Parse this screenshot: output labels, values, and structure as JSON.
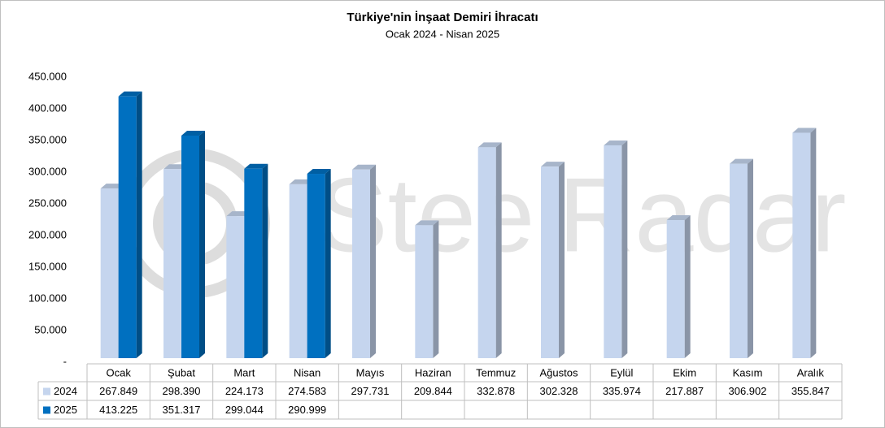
{
  "chart_data": {
    "type": "bar3d",
    "title": "Türkiye'nin İnşaat Demiri İhracatı",
    "subtitle": "Ocak 2024 - Nisan 2025",
    "watermark": "SteelRadar",
    "categories": [
      "Ocak",
      "Şubat",
      "Mart",
      "Nisan",
      "Mayıs",
      "Haziran",
      "Temmuz",
      "Ağustos",
      "Eylül",
      "Ekim",
      "Kasım",
      "Aralık"
    ],
    "series": [
      {
        "name": "2024",
        "color": "#c5d5ee",
        "values": [
          267849,
          298390,
          224173,
          274583,
          297731,
          209844,
          332878,
          302328,
          335974,
          217887,
          306902,
          355847
        ],
        "value_labels": [
          "267.849",
          "298.390",
          "224.173",
          "274.583",
          "297.731",
          "209.844",
          "332.878",
          "302.328",
          "335.974",
          "217.887",
          "306.902",
          "355.847"
        ]
      },
      {
        "name": "2025",
        "color": "#0070c0",
        "values": [
          413225,
          351317,
          299044,
          290999,
          null,
          null,
          null,
          null,
          null,
          null,
          null,
          null
        ],
        "value_labels": [
          "413.225",
          "351.317",
          "299.044",
          "290.999",
          null,
          null,
          null,
          null,
          null,
          null,
          null,
          null
        ]
      }
    ],
    "ylim": [
      0,
      450000
    ],
    "yticks": [
      {
        "value": 0,
        "label": "-"
      },
      {
        "value": 50000,
        "label": "50.000"
      },
      {
        "value": 100000,
        "label": "100.000"
      },
      {
        "value": 150000,
        "label": "150.000"
      },
      {
        "value": 200000,
        "label": "200.000"
      },
      {
        "value": 250000,
        "label": "250.000"
      },
      {
        "value": 300000,
        "label": "300.000"
      },
      {
        "value": 350000,
        "label": "350.000"
      },
      {
        "value": 400000,
        "label": "400.000"
      },
      {
        "value": 450000,
        "label": "450.000"
      }
    ],
    "grid": false
  }
}
